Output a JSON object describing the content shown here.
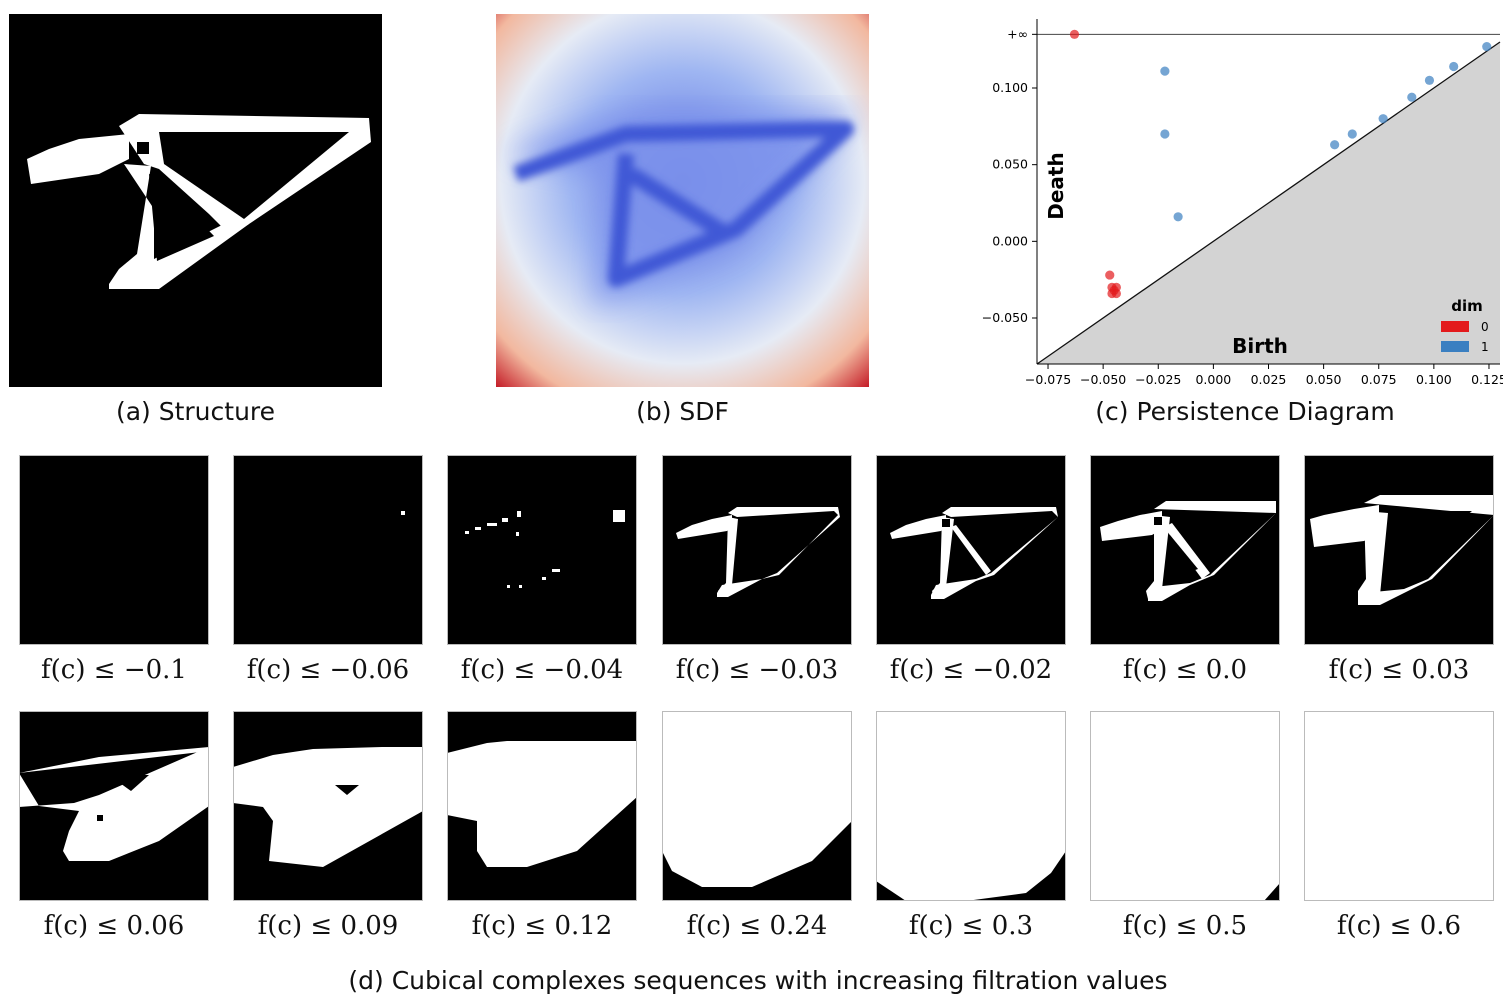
{
  "figure": {
    "captions": {
      "a": "(a) Structure",
      "b": "(b) SDF",
      "c": "(c) Persistence Diagram",
      "d": "(d) Cubical complexes sequences with increasing filtration values"
    },
    "filtration_prefix": "f(c) ≤",
    "filtration_values": [
      "−0.1",
      "−0.06",
      "−0.04",
      "−0.03",
      "−0.02",
      "0.0",
      "0.03",
      "0.06",
      "0.09",
      "0.12",
      "0.24",
      "0.3",
      "0.5",
      "0.6"
    ]
  },
  "chart_data": {
    "type": "scatter",
    "title": "",
    "xlabel": "Birth",
    "ylabel": "Death",
    "xlim": [
      -0.08,
      0.13
    ],
    "ylim": [
      -0.08,
      0.145
    ],
    "x_ticks": [
      "−0.075",
      "−0.050",
      "−0.025",
      "0.000",
      "0.025",
      "0.050",
      "0.075",
      "0.100",
      "0.125"
    ],
    "x_tick_values": [
      -0.075,
      -0.05,
      -0.025,
      0,
      0.025,
      0.05,
      0.075,
      0.1,
      0.125
    ],
    "y_ticks": [
      "−0.050",
      "0.000",
      "0.050",
      "0.100",
      "+∞"
    ],
    "y_tick_values": [
      -0.05,
      0,
      0.05,
      0.1,
      0.135
    ],
    "infinity_value": 0.135,
    "legend": {
      "title": "dim",
      "placement": "bottom-right",
      "entries": [
        {
          "label": "0",
          "color": "#e31a1c"
        },
        {
          "label": "1",
          "color": "#3a7fc1"
        }
      ]
    },
    "series": [
      {
        "name": "0",
        "color": "#e31a1c",
        "points": [
          [
            -0.063,
            0.135
          ],
          [
            -0.047,
            -0.022
          ],
          [
            -0.046,
            -0.03
          ],
          [
            -0.044,
            -0.03
          ],
          [
            -0.046,
            -0.034
          ],
          [
            -0.044,
            -0.034
          ],
          [
            -0.045,
            -0.032
          ]
        ]
      },
      {
        "name": "1",
        "color": "#3a7fc1",
        "points": [
          [
            -0.022,
            0.111
          ],
          [
            -0.022,
            0.07
          ],
          [
            -0.016,
            0.016
          ],
          [
            0.055,
            0.063
          ],
          [
            0.063,
            0.07
          ],
          [
            0.077,
            0.08
          ],
          [
            0.09,
            0.094
          ],
          [
            0.098,
            0.105
          ],
          [
            0.109,
            0.114
          ],
          [
            0.124,
            0.127
          ]
        ]
      }
    ]
  }
}
